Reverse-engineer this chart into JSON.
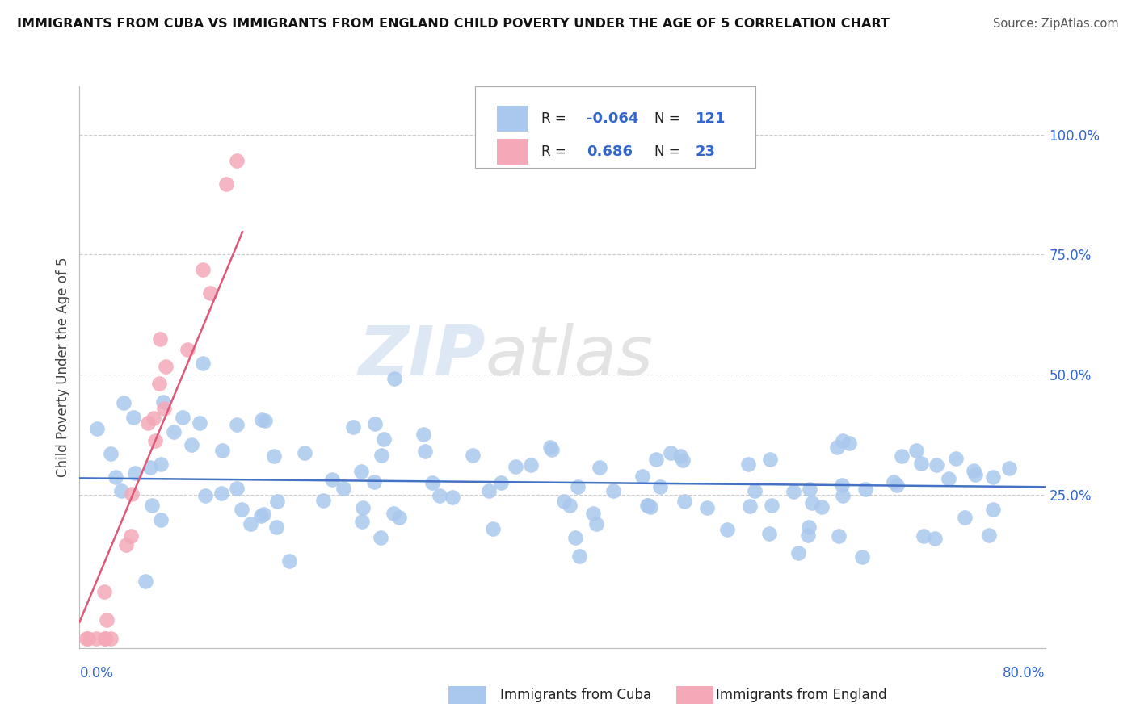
{
  "title": "IMMIGRANTS FROM CUBA VS IMMIGRANTS FROM ENGLAND CHILD POVERTY UNDER THE AGE OF 5 CORRELATION CHART",
  "source": "Source: ZipAtlas.com",
  "ylabel": "Child Poverty Under the Age of 5",
  "xlim": [
    0.0,
    0.8
  ],
  "ylim": [
    -0.07,
    1.1
  ],
  "cuba_color": "#aac8ed",
  "england_color": "#f4a8b8",
  "cuba_line_color": "#4472c4",
  "england_line_color": "#e05878",
  "cuba_R": -0.064,
  "cuba_N": 121,
  "england_R": 0.686,
  "england_N": 23,
  "watermark_top": "ZIP",
  "watermark_bot": "atlas",
  "legend_label_cuba": "Immigrants from Cuba",
  "legend_label_england": "Immigrants from England",
  "background_color": "#ffffff",
  "grid_color": "#cccccc"
}
